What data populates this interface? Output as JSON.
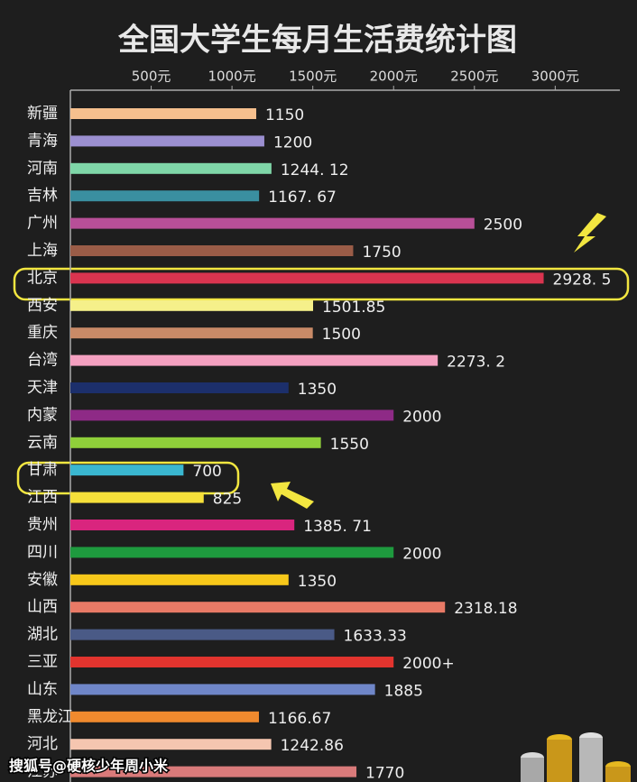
{
  "chart_data": {
    "type": "hbar",
    "title": "全国大学生每月生活费统计图",
    "categories": [
      "新疆",
      "青海",
      "河南",
      "吉林",
      "广州",
      "上海",
      "北京",
      "西安",
      "重庆",
      "台湾",
      "天津",
      "内蒙",
      "云南",
      "甘肃",
      "江西",
      "贵州",
      "四川",
      "安徽",
      "山西",
      "湖北",
      "三亚",
      "山东",
      "黑龙江",
      "河北",
      "江苏"
    ],
    "values": [
      1150,
      1200,
      1244.12,
      1167.67,
      2500,
      1750,
      2928.5,
      1501.85,
      1500,
      2273.2,
      1350,
      2000,
      1550,
      700,
      825,
      1385.71,
      2000,
      1350,
      2318.18,
      1633.33,
      2000,
      1885,
      1166.67,
      1242.86,
      1770
    ],
    "value_labels": [
      "1150",
      "1200",
      "1244. 12",
      "1167. 67",
      "2500",
      "1750",
      "2928. 5",
      "1501.85",
      "1500",
      "2273. 2",
      "1350",
      "2000",
      "1550",
      "700",
      "825",
      "1385. 71",
      "2000",
      "1350",
      "2318.18",
      "1633.33",
      "2000+",
      "1885",
      "1166.67",
      "1242.86",
      "1770"
    ],
    "colors": [
      "#f6c08e",
      "#9b8fd0",
      "#7fd6a8",
      "#3a8fa0",
      "#b84f98",
      "#9a5c47",
      "#d9344f",
      "#f5f08a",
      "#c98a67",
      "#f4a0c0",
      "#1c2f6b",
      "#8e2a86",
      "#8fcf3a",
      "#3ab7d0",
      "#f6e03a",
      "#d9257e",
      "#1e9a3e",
      "#f7c81a",
      "#e87a66",
      "#4a5a86",
      "#e2342e",
      "#6f86c8",
      "#f08a2e",
      "#f5c6b0",
      "#d97a7a"
    ],
    "xlim": [
      0,
      3400
    ],
    "xticks": [
      {
        "value": 500,
        "label": "500元"
      },
      {
        "value": 1000,
        "label": "1000元"
      },
      {
        "value": 1500,
        "label": "1500元"
      },
      {
        "value": 2000,
        "label": "2000元"
      },
      {
        "value": 2500,
        "label": "2500元"
      },
      {
        "value": 3000,
        "label": "3000元"
      }
    ],
    "watermark": "搜狐号@硬核少年周小米"
  }
}
